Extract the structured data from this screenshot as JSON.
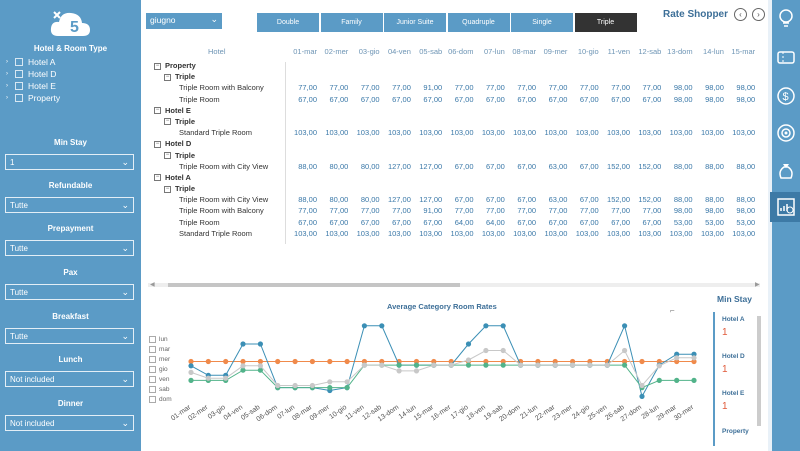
{
  "sidebar": {
    "logo_text": "5",
    "hotel_title": "Hotel & Room Type",
    "tree": [
      "Hotel A",
      "Hotel D",
      "Hotel E",
      "Property"
    ],
    "filters": [
      {
        "label": "Min Stay",
        "value": "1"
      },
      {
        "label": "Refundable",
        "value": "Tutte"
      },
      {
        "label": "Prepayment",
        "value": "Tutte"
      },
      {
        "label": "Pax",
        "value": "Tutte"
      },
      {
        "label": "Breakfast",
        "value": "Tutte"
      },
      {
        "label": "Lunch",
        "value": "Not included"
      },
      {
        "label": "Dinner",
        "value": "Not included"
      }
    ]
  },
  "header": {
    "month": "giugno",
    "tabs": [
      "Double",
      "Family",
      "Junior Suite",
      "Quadruple",
      "Single",
      "Triple"
    ],
    "active_tab": "Triple",
    "title": "Rate Shopper"
  },
  "iconbar": {
    "icons": [
      "lightbulb-icon",
      "ticket-icon",
      "dollar-cycle-icon",
      "target-icon",
      "money-bag-icon",
      "chart-search-icon"
    ],
    "active": "chart-search-icon"
  },
  "matrix": {
    "hotel_header": "Hotel",
    "dates": [
      "01-mar",
      "02-mer",
      "03-gio",
      "04-ven",
      "05-sab",
      "06-dom",
      "07-lun",
      "08-mar",
      "09-mer",
      "10-gio",
      "11-ven",
      "12-sab",
      "13-dom",
      "14-lun",
      "15-mar"
    ],
    "rows": [
      {
        "level": 0,
        "label": "Property",
        "box": "⊟",
        "values": []
      },
      {
        "level": 1,
        "label": "Triple",
        "box": "⊟",
        "values": []
      },
      {
        "level": 2,
        "label": "Triple Room with Balcony",
        "values": [
          "77,00",
          "77,00",
          "77,00",
          "77,00",
          "91,00",
          "77,00",
          "77,00",
          "77,00",
          "77,00",
          "77,00",
          "77,00",
          "77,00",
          "98,00",
          "98,00",
          "98,00"
        ]
      },
      {
        "level": 2,
        "label": "Triple Room",
        "values": [
          "67,00",
          "67,00",
          "67,00",
          "67,00",
          "67,00",
          "67,00",
          "67,00",
          "67,00",
          "67,00",
          "67,00",
          "67,00",
          "67,00",
          "98,00",
          "98,00",
          "98,00"
        ]
      },
      {
        "level": 0,
        "label": "Hotel E",
        "box": "⊟",
        "values": []
      },
      {
        "level": 1,
        "label": "Triple",
        "box": "⊟",
        "values": []
      },
      {
        "level": 2,
        "label": "Standard Triple Room",
        "values": [
          "103,00",
          "103,00",
          "103,00",
          "103,00",
          "103,00",
          "103,00",
          "103,00",
          "103,00",
          "103,00",
          "103,00",
          "103,00",
          "103,00",
          "103,00",
          "103,00",
          "103,00"
        ]
      },
      {
        "level": 0,
        "label": "Hotel D",
        "box": "⊟",
        "values": []
      },
      {
        "level": 1,
        "label": "Triple",
        "box": "⊟",
        "values": []
      },
      {
        "level": 2,
        "label": "Triple Room with City View",
        "values": [
          "88,00",
          "80,00",
          "80,00",
          "127,00",
          "127,00",
          "67,00",
          "67,00",
          "67,00",
          "63,00",
          "67,00",
          "152,00",
          "152,00",
          "88,00",
          "88,00",
          "88,00"
        ]
      },
      {
        "level": 0,
        "label": "Hotel A",
        "box": "⊟",
        "values": []
      },
      {
        "level": 1,
        "label": "Triple",
        "box": "⊟",
        "values": []
      },
      {
        "level": 2,
        "label": "Triple Room with City View",
        "values": [
          "88,00",
          "80,00",
          "80,00",
          "127,00",
          "127,00",
          "67,00",
          "67,00",
          "67,00",
          "63,00",
          "67,00",
          "152,00",
          "152,00",
          "88,00",
          "88,00",
          "88,00"
        ]
      },
      {
        "level": 2,
        "label": "Triple Room with Balcony",
        "values": [
          "77,00",
          "77,00",
          "77,00",
          "77,00",
          "91,00",
          "77,00",
          "77,00",
          "77,00",
          "77,00",
          "77,00",
          "77,00",
          "77,00",
          "98,00",
          "98,00",
          "98,00"
        ]
      },
      {
        "level": 2,
        "label": "Triple Room",
        "values": [
          "67,00",
          "67,00",
          "67,00",
          "67,00",
          "67,00",
          "64,00",
          "64,00",
          "67,00",
          "67,00",
          "67,00",
          "67,00",
          "67,00",
          "53,00",
          "53,00",
          "53,00"
        ]
      },
      {
        "level": 2,
        "label": "Standard Triple Room",
        "values": [
          "103,00",
          "103,00",
          "103,00",
          "103,00",
          "103,00",
          "103,00",
          "103,00",
          "103,00",
          "103,00",
          "103,00",
          "103,00",
          "103,00",
          "103,00",
          "103,00",
          "103,00"
        ]
      }
    ]
  },
  "chart_data": {
    "type": "line",
    "title": "Average Category Room Rates",
    "legend": [
      "lun",
      "mar",
      "mer",
      "gio",
      "ven",
      "sab",
      "dom"
    ],
    "x": [
      "01-mar",
      "02-mer",
      "03-gio",
      "04-ven",
      "05-sab",
      "06-dom",
      "07-lun",
      "08-mar",
      "09-mer",
      "10-gio",
      "11-ven",
      "12-sab",
      "13-dom",
      "14-lun",
      "15-mar",
      "16-mer",
      "17-gio",
      "18-ven",
      "19-sab",
      "20-dom",
      "21-lun",
      "22-mar",
      "23-mer",
      "24-gio",
      "25-ven",
      "26-sab",
      "27-dom",
      "28-lun",
      "29-mar",
      "30-mer"
    ],
    "series": [
      {
        "color": "#f08a4b",
        "values": [
          103,
          103,
          103,
          103,
          103,
          103,
          103,
          103,
          103,
          103,
          103,
          103,
          103,
          103,
          103,
          103,
          103,
          103,
          103,
          103,
          103,
          103,
          103,
          103,
          103,
          103,
          103,
          103,
          103,
          103
        ]
      },
      {
        "color": "#3b8fb5",
        "values": [
          97,
          84,
          84,
          127,
          127,
          67,
          67,
          67,
          63,
          67,
          152,
          152,
          98,
          98,
          98,
          98,
          127,
          152,
          152,
          98,
          98,
          98,
          98,
          98,
          98,
          152,
          55,
          98,
          113,
          113
        ]
      },
      {
        "color": "#52b38a",
        "values": [
          77,
          77,
          77,
          91,
          91,
          67,
          67,
          67,
          67,
          67,
          98,
          98,
          98,
          98,
          98,
          98,
          98,
          98,
          98,
          98,
          98,
          98,
          98,
          98,
          98,
          98,
          67,
          77,
          77,
          77
        ]
      },
      {
        "color": "#c8c8c8",
        "values": [
          88,
          80,
          80,
          97,
          97,
          70,
          70,
          70,
          75,
          75,
          98,
          98,
          90,
          90,
          98,
          98,
          105,
          118,
          118,
          98,
          98,
          98,
          98,
          98,
          98,
          118,
          70,
          97,
          108,
          108
        ]
      }
    ],
    "ylim": [
      50,
      160
    ]
  },
  "min_stay": {
    "title": "Min Stay",
    "items": [
      {
        "label": "Hotel A",
        "value": "1"
      },
      {
        "label": "Hotel D",
        "value": "1"
      },
      {
        "label": "Hotel E",
        "value": "1"
      },
      {
        "label": "Property",
        "value": ""
      }
    ]
  }
}
